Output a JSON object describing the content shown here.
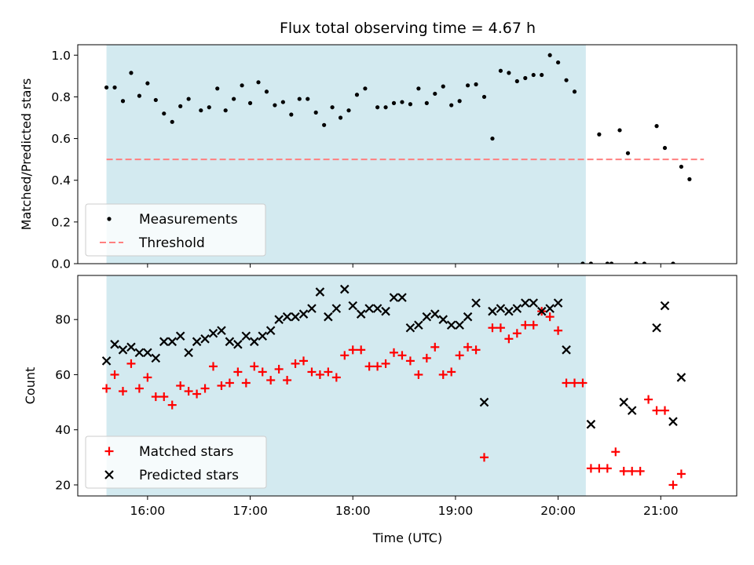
{
  "chart_data": {
    "type": "scatter",
    "title": "Flux total observing time = 4.67 h",
    "xlabel": "Time (UTC)",
    "x_ticks": [
      "16:00",
      "17:00",
      "18:00",
      "19:00",
      "20:00",
      "21:00"
    ],
    "x_tick_hours": [
      16,
      17,
      18,
      19,
      20,
      21
    ],
    "xlim": [
      15.32,
      21.74
    ],
    "observing_window": [
      15.6,
      20.27
    ],
    "colors": {
      "window": "#d3eaf0",
      "measurements": "#000000",
      "threshold": "#ff8080",
      "matched": "#ff0000",
      "predicted": "#000000"
    },
    "panels": [
      {
        "ylabel": "Matched/Predicted stars",
        "ylim": [
          0,
          1.05
        ],
        "yticks": [
          0.0,
          0.2,
          0.4,
          0.6,
          0.8,
          1.0
        ],
        "ytick_labels": [
          "0.0",
          "0.2",
          "0.4",
          "0.6",
          "0.8",
          "1.0"
        ],
        "legend": [
          "Measurements",
          "Threshold"
        ],
        "legend_position": "lower-left",
        "threshold": {
          "value": 0.5,
          "x_range": [
            15.6,
            21.42
          ]
        },
        "series": [
          {
            "name": "Measurements",
            "marker": "dot",
            "points": [
              [
                15.6,
                0.845
              ],
              [
                15.68,
                0.845
              ],
              [
                15.76,
                0.78
              ],
              [
                15.84,
                0.915
              ],
              [
                15.92,
                0.805
              ],
              [
                16.0,
                0.865
              ],
              [
                16.08,
                0.785
              ],
              [
                16.16,
                0.72
              ],
              [
                16.24,
                0.68
              ],
              [
                16.32,
                0.755
              ],
              [
                16.4,
                0.79
              ],
              [
                16.52,
                0.735
              ],
              [
                16.6,
                0.75
              ],
              [
                16.68,
                0.84
              ],
              [
                16.76,
                0.735
              ],
              [
                16.84,
                0.79
              ],
              [
                16.92,
                0.855
              ],
              [
                17.0,
                0.77
              ],
              [
                17.08,
                0.87
              ],
              [
                17.16,
                0.825
              ],
              [
                17.24,
                0.76
              ],
              [
                17.32,
                0.775
              ],
              [
                17.4,
                0.715
              ],
              [
                17.48,
                0.79
              ],
              [
                17.56,
                0.79
              ],
              [
                17.64,
                0.725
              ],
              [
                17.72,
                0.665
              ],
              [
                17.8,
                0.75
              ],
              [
                17.88,
                0.7
              ],
              [
                17.96,
                0.735
              ],
              [
                18.04,
                0.81
              ],
              [
                18.12,
                0.84
              ],
              [
                18.24,
                0.75
              ],
              [
                18.32,
                0.75
              ],
              [
                18.4,
                0.77
              ],
              [
                18.48,
                0.775
              ],
              [
                18.56,
                0.765
              ],
              [
                18.64,
                0.84
              ],
              [
                18.72,
                0.77
              ],
              [
                18.8,
                0.815
              ],
              [
                18.88,
                0.85
              ],
              [
                18.96,
                0.76
              ],
              [
                19.04,
                0.78
              ],
              [
                19.12,
                0.855
              ],
              [
                19.2,
                0.86
              ],
              [
                19.28,
                0.8
              ],
              [
                19.36,
                0.6
              ],
              [
                19.44,
                0.925
              ],
              [
                19.52,
                0.915
              ],
              [
                19.6,
                0.875
              ],
              [
                19.68,
                0.89
              ],
              [
                19.76,
                0.905
              ],
              [
                19.84,
                0.905
              ],
              [
                19.92,
                1.0
              ],
              [
                20.0,
                0.965
              ],
              [
                20.08,
                0.88
              ],
              [
                20.16,
                0.825
              ],
              [
                20.24,
                0.0
              ],
              [
                20.32,
                0.0
              ],
              [
                20.4,
                0.62
              ],
              [
                20.48,
                0.0
              ],
              [
                20.52,
                0.0
              ],
              [
                20.6,
                0.64
              ],
              [
                20.68,
                0.53
              ],
              [
                20.76,
                0.0
              ],
              [
                20.84,
                0.0
              ],
              [
                20.96,
                0.66
              ],
              [
                21.04,
                0.555
              ],
              [
                21.12,
                0.0
              ],
              [
                21.2,
                0.465
              ],
              [
                21.28,
                0.405
              ]
            ]
          }
        ]
      },
      {
        "ylabel": "Count",
        "ylim": [
          16,
          96
        ],
        "yticks": [
          20,
          40,
          60,
          80
        ],
        "ytick_labels": [
          "20",
          "40",
          "60",
          "80"
        ],
        "legend": [
          "Matched stars",
          "Predicted stars"
        ],
        "legend_position": "lower-left",
        "series": [
          {
            "name": "Matched stars",
            "marker": "plus",
            "points": [
              [
                15.6,
                55
              ],
              [
                15.68,
                60
              ],
              [
                15.76,
                54
              ],
              [
                15.84,
                64
              ],
              [
                15.92,
                55
              ],
              [
                16.0,
                59
              ],
              [
                16.08,
                52
              ],
              [
                16.16,
                52
              ],
              [
                16.24,
                49
              ],
              [
                16.32,
                56
              ],
              [
                16.4,
                54
              ],
              [
                16.48,
                53
              ],
              [
                16.56,
                55
              ],
              [
                16.64,
                63
              ],
              [
                16.72,
                56
              ],
              [
                16.8,
                57
              ],
              [
                16.88,
                61
              ],
              [
                16.96,
                57
              ],
              [
                17.04,
                63
              ],
              [
                17.12,
                61
              ],
              [
                17.2,
                58
              ],
              [
                17.28,
                62
              ],
              [
                17.36,
                58
              ],
              [
                17.44,
                64
              ],
              [
                17.52,
                65
              ],
              [
                17.6,
                61
              ],
              [
                17.68,
                60
              ],
              [
                17.76,
                61
              ],
              [
                17.84,
                59
              ],
              [
                17.92,
                67
              ],
              [
                18.0,
                69
              ],
              [
                18.08,
                69
              ],
              [
                18.16,
                63
              ],
              [
                18.24,
                63
              ],
              [
                18.32,
                64
              ],
              [
                18.4,
                68
              ],
              [
                18.48,
                67
              ],
              [
                18.56,
                65
              ],
              [
                18.64,
                60
              ],
              [
                18.72,
                66
              ],
              [
                18.8,
                70
              ],
              [
                18.88,
                60
              ],
              [
                18.96,
                61
              ],
              [
                19.04,
                67
              ],
              [
                19.12,
                70
              ],
              [
                19.2,
                69
              ],
              [
                19.28,
                30
              ],
              [
                19.36,
                77
              ],
              [
                19.44,
                77
              ],
              [
                19.52,
                73
              ],
              [
                19.6,
                75
              ],
              [
                19.68,
                78
              ],
              [
                19.76,
                78
              ],
              [
                19.84,
                83
              ],
              [
                19.92,
                81
              ],
              [
                20.0,
                76
              ],
              [
                20.08,
                57
              ],
              [
                20.16,
                57
              ],
              [
                20.24,
                57
              ],
              [
                20.32,
                26
              ],
              [
                20.4,
                26
              ],
              [
                20.48,
                26
              ],
              [
                20.56,
                32
              ],
              [
                20.64,
                25
              ],
              [
                20.72,
                25
              ],
              [
                20.8,
                25
              ],
              [
                20.88,
                51
              ],
              [
                20.96,
                47
              ],
              [
                21.04,
                47
              ],
              [
                21.12,
                20
              ],
              [
                21.2,
                24
              ]
            ]
          },
          {
            "name": "Predicted stars",
            "marker": "cross",
            "points": [
              [
                15.6,
                65
              ],
              [
                15.68,
                71
              ],
              [
                15.76,
                69
              ],
              [
                15.84,
                70
              ],
              [
                15.92,
                68
              ],
              [
                16.0,
                68
              ],
              [
                16.08,
                66
              ],
              [
                16.16,
                72
              ],
              [
                16.24,
                72
              ],
              [
                16.32,
                74
              ],
              [
                16.4,
                68
              ],
              [
                16.48,
                72
              ],
              [
                16.56,
                73
              ],
              [
                16.64,
                75
              ],
              [
                16.72,
                76
              ],
              [
                16.8,
                72
              ],
              [
                16.88,
                71
              ],
              [
                16.96,
                74
              ],
              [
                17.04,
                72
              ],
              [
                17.12,
                74
              ],
              [
                17.2,
                76
              ],
              [
                17.28,
                80
              ],
              [
                17.36,
                81
              ],
              [
                17.44,
                81
              ],
              [
                17.52,
                82
              ],
              [
                17.6,
                84
              ],
              [
                17.68,
                90
              ],
              [
                17.76,
                81
              ],
              [
                17.84,
                84
              ],
              [
                17.92,
                91
              ],
              [
                18.0,
                85
              ],
              [
                18.08,
                82
              ],
              [
                18.16,
                84
              ],
              [
                18.24,
                84
              ],
              [
                18.32,
                83
              ],
              [
                18.4,
                88
              ],
              [
                18.48,
                88
              ],
              [
                18.56,
                77
              ],
              [
                18.64,
                78
              ],
              [
                18.72,
                81
              ],
              [
                18.8,
                82
              ],
              [
                18.88,
                80
              ],
              [
                18.96,
                78
              ],
              [
                19.04,
                78
              ],
              [
                19.12,
                81
              ],
              [
                19.2,
                86
              ],
              [
                19.28,
                50
              ],
              [
                19.36,
                83
              ],
              [
                19.44,
                84
              ],
              [
                19.52,
                83
              ],
              [
                19.6,
                84
              ],
              [
                19.68,
                86
              ],
              [
                19.76,
                86
              ],
              [
                19.84,
                83
              ],
              [
                19.92,
                84
              ],
              [
                20.0,
                86
              ],
              [
                20.08,
                69
              ],
              [
                20.32,
                42
              ],
              [
                20.64,
                50
              ],
              [
                20.72,
                47
              ],
              [
                20.96,
                77
              ],
              [
                21.04,
                85
              ],
              [
                21.12,
                43
              ],
              [
                21.2,
                59
              ]
            ]
          }
        ]
      }
    ]
  }
}
